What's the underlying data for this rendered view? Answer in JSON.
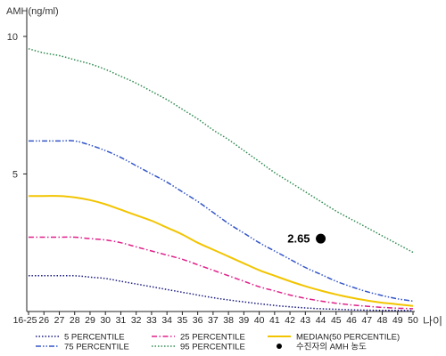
{
  "chart_data": {
    "type": "line",
    "ylabel": "AMH(ng/ml)",
    "xlabel": "나이",
    "ylim": [
      0,
      11
    ],
    "yticks": [
      5,
      10
    ],
    "x": [
      "16-25",
      "26",
      "27",
      "28",
      "29",
      "30",
      "31",
      "32",
      "33",
      "34",
      "35",
      "36",
      "37",
      "38",
      "39",
      "40",
      "41",
      "42",
      "43",
      "44",
      "45",
      "46",
      "47",
      "48",
      "49",
      "50"
    ],
    "grid": false,
    "legend_position": "bottom",
    "series": [
      {
        "name": "5 PERCENTILE",
        "color": "#1a1a80",
        "dash": "dotted",
        "values": [
          1.3,
          1.3,
          1.3,
          1.3,
          1.25,
          1.2,
          1.1,
          1.0,
          0.9,
          0.8,
          0.7,
          0.6,
          0.5,
          0.42,
          0.35,
          0.28,
          0.22,
          0.17,
          0.13,
          0.1,
          0.08,
          0.06,
          0.05,
          0.04,
          0.04,
          0.03
        ]
      },
      {
        "name": "25 PERCENTILE",
        "color": "#e0208a",
        "dash": "dashdot",
        "values": [
          2.7,
          2.7,
          2.7,
          2.7,
          2.65,
          2.6,
          2.5,
          2.35,
          2.2,
          2.05,
          1.9,
          1.7,
          1.5,
          1.3,
          1.1,
          0.9,
          0.75,
          0.6,
          0.48,
          0.38,
          0.3,
          0.24,
          0.19,
          0.15,
          0.12,
          0.1
        ]
      },
      {
        "name": "MEDIAN(50 PERCENTILE)",
        "color": "#f2c400",
        "dash": "solid",
        "values": [
          4.2,
          4.2,
          4.2,
          4.15,
          4.05,
          3.9,
          3.7,
          3.5,
          3.3,
          3.05,
          2.8,
          2.5,
          2.25,
          2.0,
          1.75,
          1.5,
          1.3,
          1.1,
          0.92,
          0.76,
          0.62,
          0.5,
          0.4,
          0.32,
          0.26,
          0.2
        ]
      },
      {
        "name": "75 PERCENTILE",
        "color": "#3355c8",
        "dash": "dashdotdot",
        "values": [
          6.2,
          6.2,
          6.2,
          6.2,
          6.05,
          5.85,
          5.6,
          5.3,
          5.0,
          4.7,
          4.35,
          4.0,
          3.6,
          3.2,
          2.85,
          2.5,
          2.2,
          1.9,
          1.6,
          1.35,
          1.1,
          0.9,
          0.72,
          0.58,
          0.46,
          0.38
        ]
      },
      {
        "name": "95 PERCENTILE",
        "color": "#2e8a50",
        "dash": "dotted",
        "values": [
          9.55,
          9.4,
          9.3,
          9.15,
          9.0,
          8.8,
          8.55,
          8.3,
          8.0,
          7.7,
          7.35,
          7.0,
          6.6,
          6.25,
          5.85,
          5.45,
          5.05,
          4.7,
          4.35,
          4.0,
          3.65,
          3.35,
          3.05,
          2.75,
          2.45,
          2.15
        ]
      }
    ],
    "marker": {
      "name": "수진자의 AMH 농도",
      "x": "44",
      "value": 2.65,
      "label": "2.65",
      "color": "#000000"
    }
  }
}
